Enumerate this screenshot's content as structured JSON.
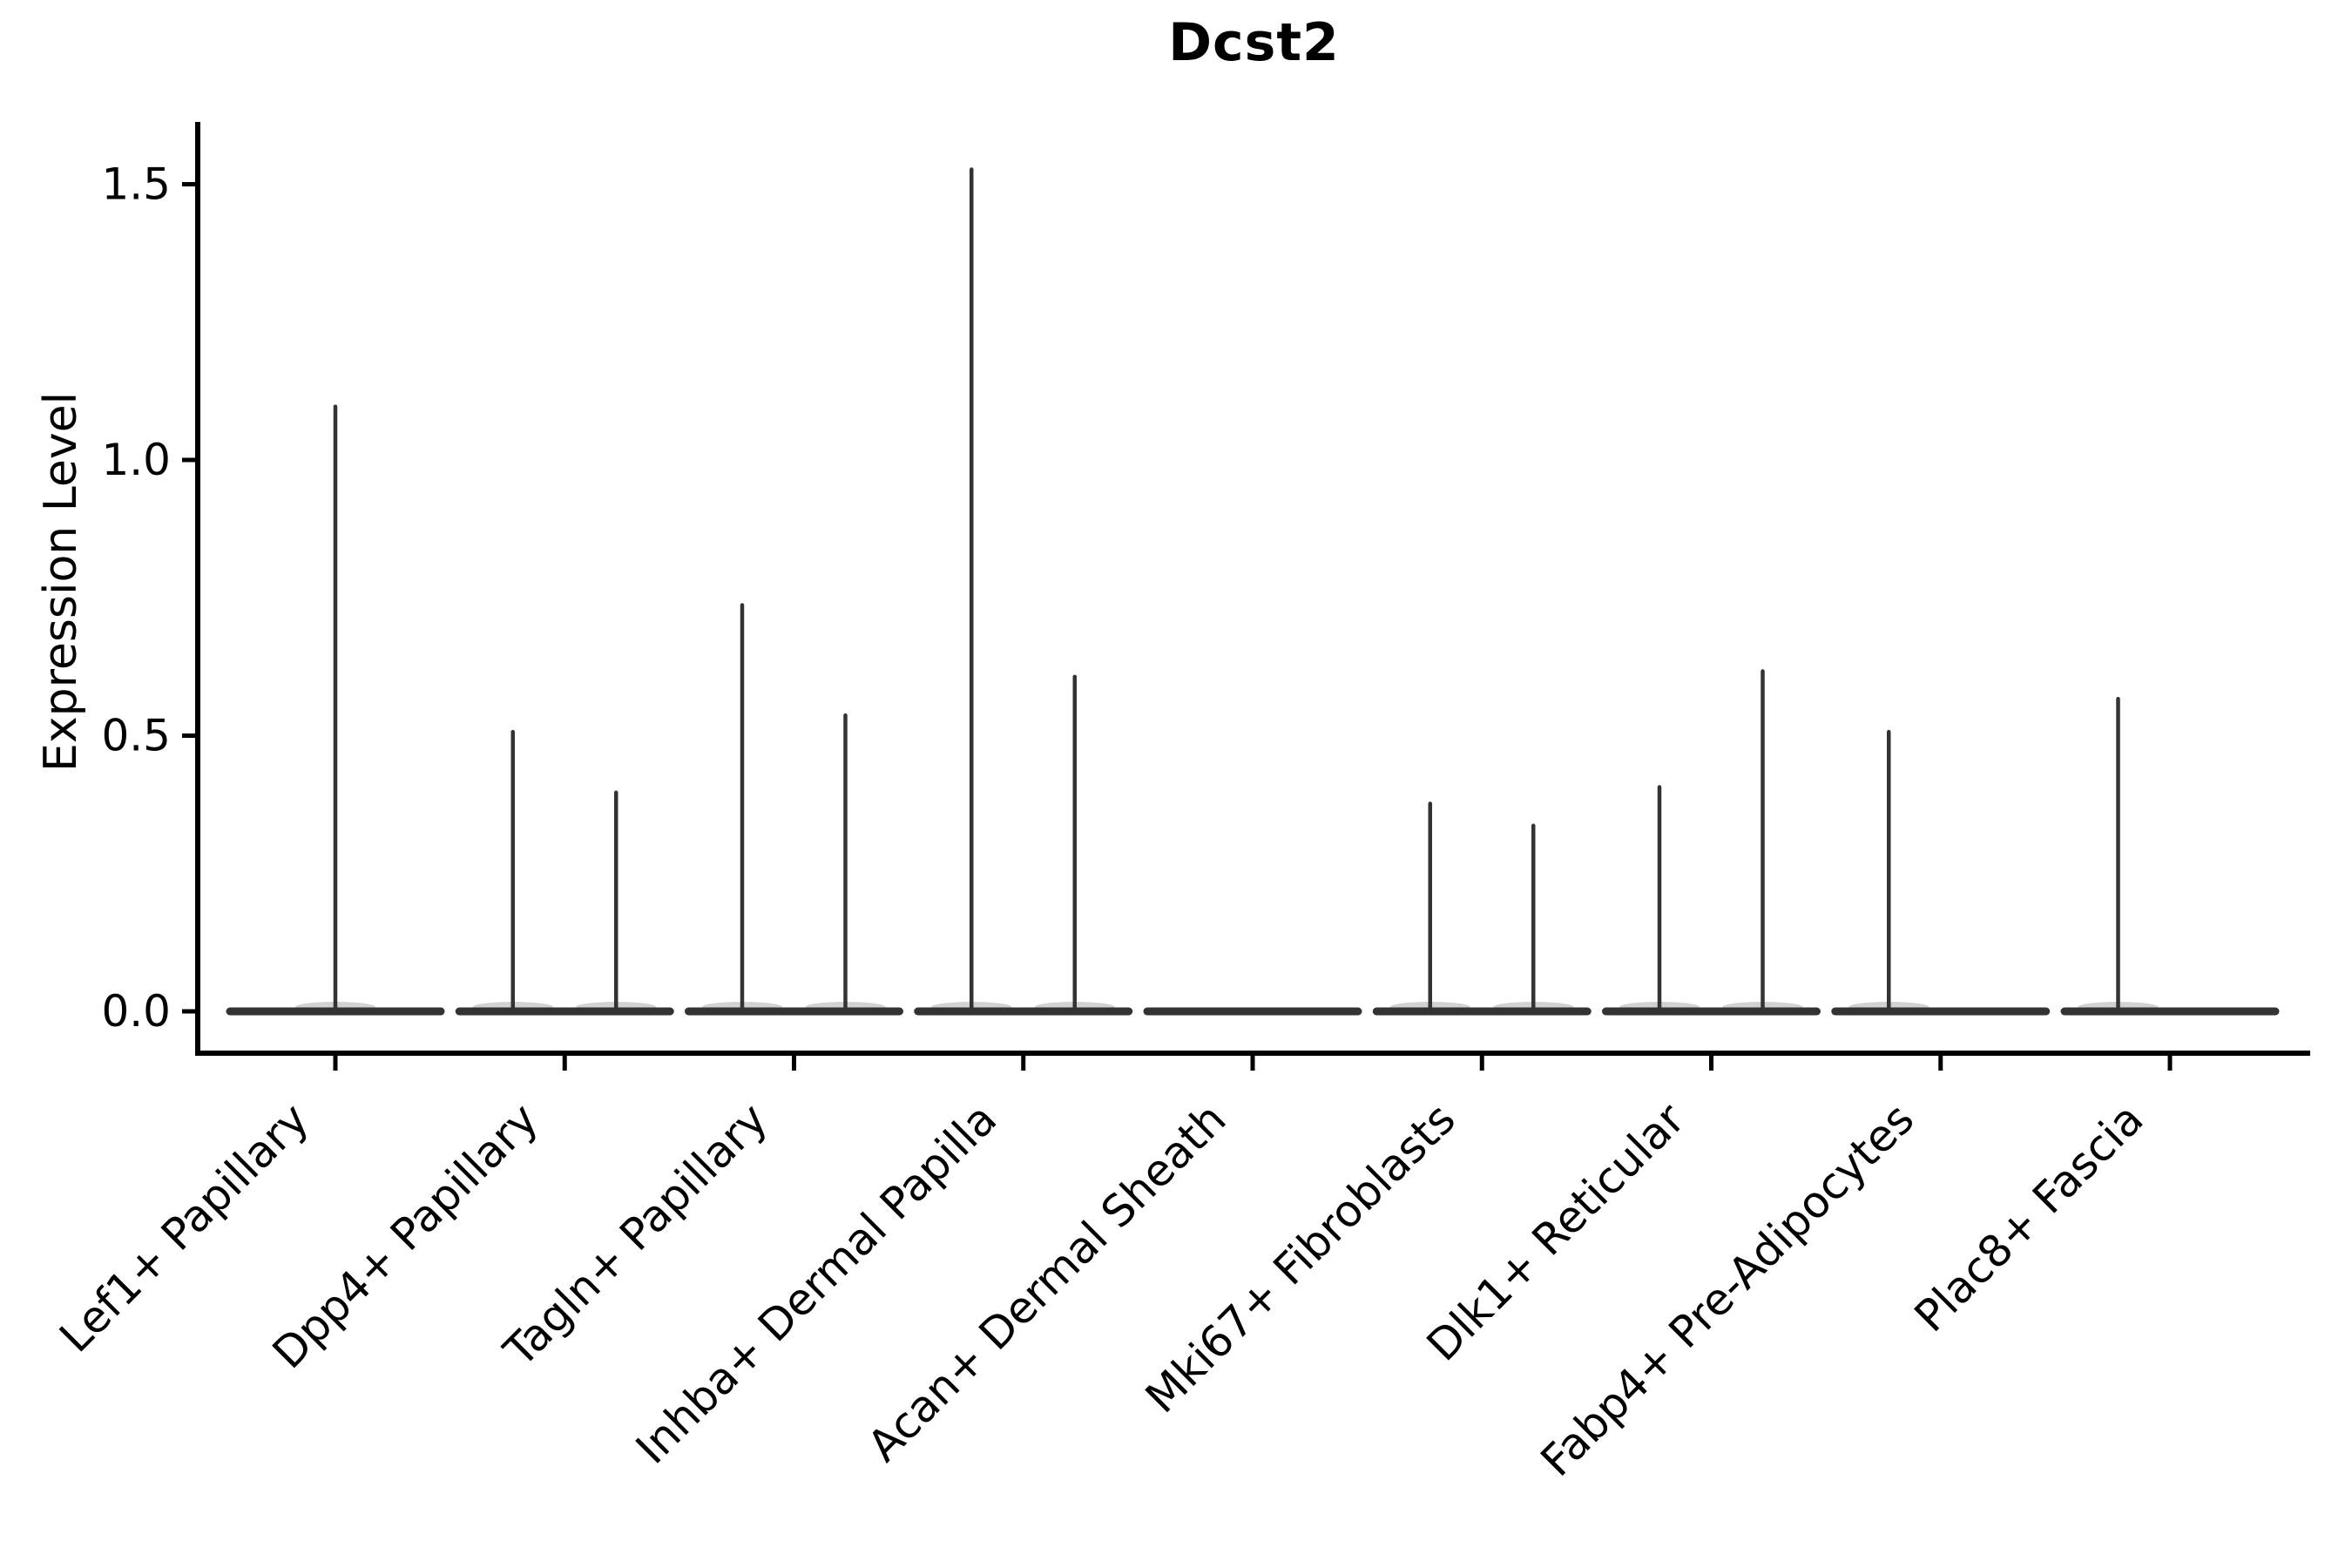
{
  "title": "Dcst2",
  "chart_data": {
    "type": "violin",
    "title": "Dcst2",
    "xlabel": "",
    "ylabel": "Expression Level",
    "ylim": [
      0,
      1.6
    ],
    "yticks": [
      0.0,
      0.5,
      1.0,
      1.5
    ],
    "ytick_labels": [
      "0.0",
      "0.5",
      "1.0",
      "1.5"
    ],
    "grid": false,
    "legend": "none",
    "categories": [
      "Lef1+ Papillary",
      "Dpp4+ Papillary",
      "Tagln+ Papillary",
      "Inhba+ Dermal Papilla",
      "Acan+ Dermal Sheath",
      "Mki67+ Fibroblasts",
      "Dlk1+ Reticular",
      "Fabp4+ Pre-Adipocytes",
      "Plac8+ Fascia"
    ],
    "violins": [
      {
        "category": "Lef1+ Papillary",
        "spikes": [
          {
            "position": "center",
            "max": 1.1
          }
        ]
      },
      {
        "category": "Dpp4+ Papillary",
        "spikes": [
          {
            "position": "left",
            "max": 0.51
          },
          {
            "position": "right",
            "max": 0.4
          }
        ]
      },
      {
        "category": "Tagln+ Papillary",
        "spikes": [
          {
            "position": "left",
            "max": 0.74
          },
          {
            "position": "right",
            "max": 0.54
          }
        ]
      },
      {
        "category": "Inhba+ Dermal Papilla",
        "spikes": [
          {
            "position": "left",
            "max": 1.53
          },
          {
            "position": "right",
            "max": 0.61
          }
        ]
      },
      {
        "category": "Acan+ Dermal Sheath",
        "spikes": []
      },
      {
        "category": "Mki67+ Fibroblasts",
        "spikes": [
          {
            "position": "left",
            "max": 0.38
          },
          {
            "position": "right",
            "max": 0.34
          }
        ]
      },
      {
        "category": "Dlk1+ Reticular",
        "spikes": [
          {
            "position": "left",
            "max": 0.41
          },
          {
            "position": "right",
            "max": 0.62
          }
        ]
      },
      {
        "category": "Fabp4+ Pre-Adipocytes",
        "spikes": [
          {
            "position": "left",
            "max": 0.51
          }
        ]
      },
      {
        "category": "Plac8+ Fascia",
        "spikes": [
          {
            "position": "left",
            "max": 0.57
          }
        ]
      }
    ],
    "colors": {
      "violin": "#333333",
      "axis": "#000000",
      "background": "#ffffff"
    }
  }
}
